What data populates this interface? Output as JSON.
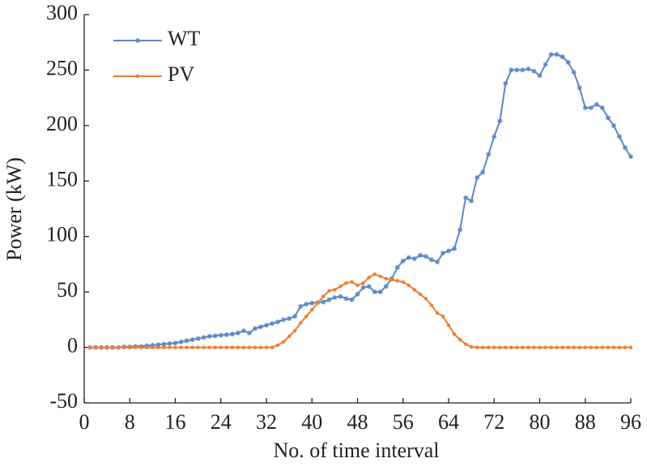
{
  "chart_data": {
    "type": "line",
    "xlabel": "No. of time interval",
    "ylabel": "Power (kW)",
    "x": [
      1,
      2,
      3,
      4,
      5,
      6,
      7,
      8,
      9,
      10,
      11,
      12,
      13,
      14,
      15,
      16,
      17,
      18,
      19,
      20,
      21,
      22,
      23,
      24,
      25,
      26,
      27,
      28,
      29,
      30,
      31,
      32,
      33,
      34,
      35,
      36,
      37,
      38,
      39,
      40,
      41,
      42,
      43,
      44,
      45,
      46,
      47,
      48,
      49,
      50,
      51,
      52,
      53,
      54,
      55,
      56,
      57,
      58,
      59,
      60,
      61,
      62,
      63,
      64,
      65,
      66,
      67,
      68,
      69,
      70,
      71,
      72,
      73,
      74,
      75,
      76,
      77,
      78,
      79,
      80,
      81,
      82,
      83,
      84,
      85,
      86,
      87,
      88,
      89,
      90,
      91,
      92,
      93,
      94,
      95,
      96
    ],
    "series": [
      {
        "name": "WT",
        "color": "#5b86c5",
        "marker": "star",
        "values": [
          0,
          0,
          0,
          0,
          0,
          0,
          0.5,
          0.5,
          1,
          1,
          1.5,
          2,
          2.5,
          3,
          3.5,
          4,
          5,
          6,
          7,
          8,
          9,
          10,
          10.5,
          11,
          11.5,
          12,
          13,
          15,
          13,
          17,
          18.5,
          20,
          21.5,
          23,
          25,
          26,
          28,
          37,
          39,
          40,
          40.5,
          41,
          43,
          45,
          46,
          44,
          43,
          48,
          54,
          55,
          50,
          50,
          55,
          62,
          72,
          78,
          81,
          80,
          83,
          82,
          79,
          77,
          85,
          87,
          89,
          106,
          135,
          132,
          153,
          158,
          174,
          190,
          204,
          238,
          250,
          250,
          250,
          251,
          249,
          245,
          255,
          264,
          264,
          262,
          257,
          248,
          234,
          216,
          216,
          219,
          216,
          207,
          200,
          190,
          180,
          172
        ]
      },
      {
        "name": "PV",
        "color": "#ed7d31",
        "marker": "circle",
        "values": [
          0,
          0,
          0,
          0,
          0,
          0,
          0,
          0,
          0,
          0,
          0,
          0,
          0,
          0,
          0,
          0,
          0,
          0,
          0,
          0,
          0,
          0,
          0,
          0,
          0,
          0,
          0,
          0,
          0,
          0,
          0,
          0,
          0,
          2,
          5,
          10,
          15,
          22,
          28,
          34,
          40,
          46,
          51,
          52,
          55,
          58,
          59,
          56,
          58,
          63,
          66,
          64,
          62,
          61,
          60,
          59,
          56,
          52,
          48,
          44,
          38,
          31,
          28,
          20,
          12,
          7,
          3,
          0.5,
          0,
          0,
          0,
          0,
          0,
          0,
          0,
          0,
          0,
          0,
          0,
          0,
          0,
          0,
          0,
          0,
          0,
          0,
          0,
          0,
          0,
          0,
          0,
          0,
          0,
          0,
          0,
          0
        ]
      }
    ],
    "xlim": [
      0,
      96
    ],
    "xticks": [
      0,
      8,
      16,
      24,
      32,
      40,
      48,
      56,
      64,
      72,
      80,
      88,
      96
    ],
    "ylim": [
      -50,
      300
    ],
    "yticks": [
      -50,
      0,
      50,
      100,
      150,
      200,
      250,
      300
    ],
    "grid": false,
    "legend": "upper left"
  }
}
